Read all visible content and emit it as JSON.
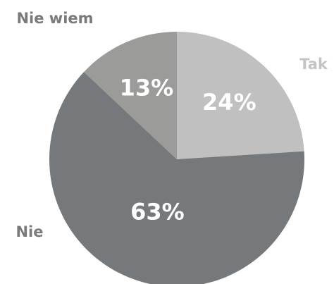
{
  "chart_data": {
    "type": "pie",
    "categories": [
      "Tak",
      "Nie",
      "Nie wiem"
    ],
    "values": [
      24,
      63,
      13
    ],
    "value_labels": [
      "24%",
      "63%",
      "13%"
    ],
    "colors": [
      "#c0c0c0",
      "#76797b",
      "#9b9b99"
    ],
    "label_colors": [
      "#c4c4c4",
      "#7a7a7a",
      "#7a7a7a"
    ]
  }
}
